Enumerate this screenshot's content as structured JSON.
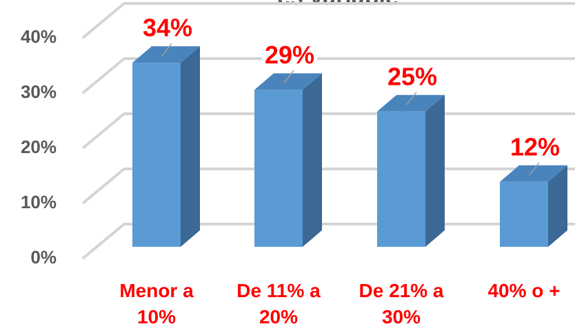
{
  "chart_data": {
    "type": "bar3d",
    "title": "es variable",
    "categories": [
      "Menor a 10%",
      "De 11% a 20%",
      "De 21% a 30%",
      "40% o +"
    ],
    "values": [
      34,
      29,
      25,
      12
    ],
    "value_labels": [
      "34%",
      "29%",
      "25%",
      "12%"
    ],
    "color": "#5b9bd5",
    "ylim": [
      0,
      40
    ],
    "yticks": [
      {
        "value": 0,
        "label": "0%"
      },
      {
        "value": 10,
        "label": "10%"
      },
      {
        "value": 20,
        "label": "20%"
      },
      {
        "value": 30,
        "label": "30%"
      },
      {
        "value": 40,
        "label": "40%"
      }
    ],
    "grid": true
  }
}
